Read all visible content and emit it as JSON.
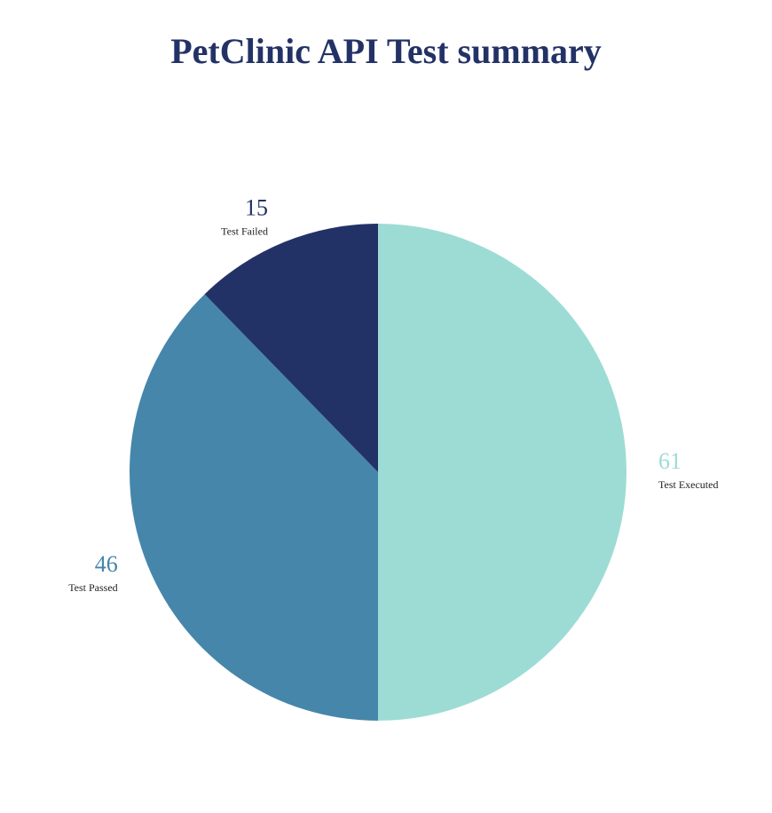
{
  "chart_data": {
    "type": "pie",
    "title": "PetClinic API Test summary",
    "slices": [
      {
        "label": "Test Executed",
        "value": 61,
        "color": "#9ddcd5"
      },
      {
        "label": "Test Passed",
        "value": 46,
        "color": "#4686aa"
      },
      {
        "label": "Test Failed",
        "value": 15,
        "color": "#233266"
      }
    ],
    "title_color": "#233266",
    "legend": "none"
  }
}
